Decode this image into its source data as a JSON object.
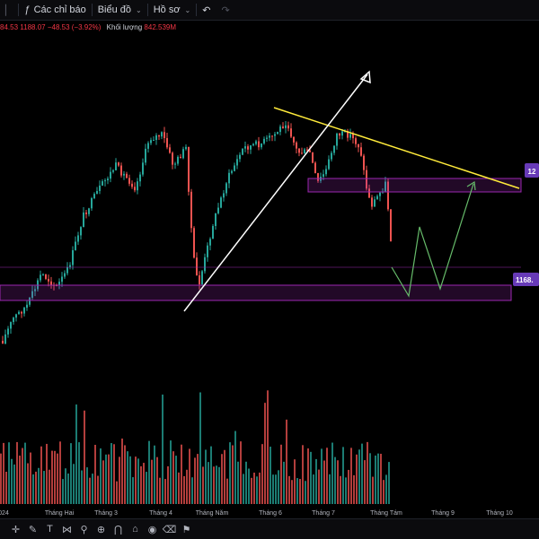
{
  "toolbar": {
    "indicators_label": "Các chỉ báo",
    "chart_label": "Biểu đồ",
    "profile_label": "Hồ sơ"
  },
  "legend": {
    "ohlc_tail": "84.53",
    "close": "1188.07",
    "change": "−48.53 (−3.92%)",
    "volume_label": "Khối lượng",
    "volume_value": "842.539M"
  },
  "price_labels": {
    "resistance": "12",
    "support": "1168."
  },
  "colors": {
    "up": "#26a69a",
    "down": "#ef5350",
    "trendline": "#ffeb3b",
    "zone": "#9c27b0",
    "projection": "#66bb6a"
  },
  "chart_data": {
    "type": "candlestick",
    "x_ticks": [
      "024",
      "Tháng Hai",
      "Tháng 3",
      "Tháng 4",
      "Tháng Năm",
      "Tháng 6",
      "Tháng 7",
      "Tháng Tám",
      "Tháng 9",
      "Tháng 10"
    ],
    "zones": [
      {
        "name": "resistance-zone",
        "top": 1240,
        "bottom": 1230
      },
      {
        "name": "support-zone",
        "top": 1170,
        "bottom": 1160
      }
    ],
    "last_close": 1188.07
  },
  "bottom_icons": [
    "cursor-icon",
    "brush-icon",
    "text-icon",
    "pattern-icon",
    "ruler-icon",
    "zoom-icon",
    "magnet-icon",
    "lock-icon",
    "visibility-icon",
    "trash-icon",
    "flag-icon"
  ]
}
